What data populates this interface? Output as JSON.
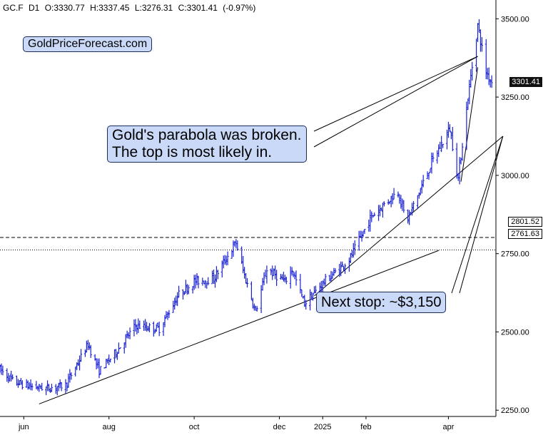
{
  "header": {
    "symbol": "GC.F",
    "timeframe": "D1",
    "open": "O:3330.77",
    "high": "H:3337.45",
    "low": "L:3276.31",
    "close": "C:3301.41",
    "change": "(-0.97%)"
  },
  "annotations": {
    "brand": "GoldPriceForecast.com",
    "note_line1": "Gold's parabola was broken.",
    "note_line2": "The top is most likely in.",
    "next_stop": "Next stop: ~$3,150"
  },
  "price_tags": {
    "last": "3301.41",
    "level_upper": "2801.52",
    "level_lower": "2761.63"
  },
  "colors": {
    "bars": "#1a22d6",
    "callout_fill": "#c9d9f7",
    "callout_border": "#1c2c5a"
  },
  "chart_data": {
    "type": "ohlc",
    "symbol": "GC.F",
    "timeframe": "D1",
    "y_ticks": [
      2250,
      2500,
      2750,
      3000,
      3250,
      3500
    ],
    "y_tick_labels": [
      "2250.00",
      "2500.00",
      "2750.00",
      "3000.00",
      "3250.00",
      "3500.00"
    ],
    "x_tick_labels": [
      "jun",
      "aug",
      "oct",
      "dec",
      "2025",
      "feb",
      "apr"
    ],
    "x_tick_dates": [
      "2024-06-01",
      "2024-08-01",
      "2024-10-01",
      "2024-12-01",
      "2025-01-01",
      "2025-02-01",
      "2025-04-01"
    ],
    "ylim": [
      2230,
      3560
    ],
    "x_range": [
      "2024-05-15",
      "2025-05-05"
    ],
    "last_price": 3301.41,
    "horizontal_levels": [
      2801.52,
      2761.63
    ],
    "price_path": [
      [
        "2024-05-15",
        2380
      ],
      [
        "2024-05-25",
        2340
      ],
      [
        "2024-06-07",
        2325
      ],
      [
        "2024-06-18",
        2320
      ],
      [
        "2024-07-01",
        2330
      ],
      [
        "2024-07-17",
        2460
      ],
      [
        "2024-07-25",
        2375
      ],
      [
        "2024-08-05",
        2430
      ],
      [
        "2024-08-20",
        2520
      ],
      [
        "2024-09-06",
        2510
      ],
      [
        "2024-09-20",
        2620
      ],
      [
        "2024-10-01",
        2660
      ],
      [
        "2024-10-15",
        2670
      ],
      [
        "2024-10-31",
        2785
      ],
      [
        "2024-11-06",
        2680
      ],
      [
        "2024-11-14",
        2565
      ],
      [
        "2024-11-22",
        2700
      ],
      [
        "2024-12-05",
        2660
      ],
      [
        "2024-12-10",
        2700
      ],
      [
        "2024-12-19",
        2590
      ],
      [
        "2025-01-02",
        2660
      ],
      [
        "2025-01-20",
        2730
      ],
      [
        "2025-02-05",
        2870
      ],
      [
        "2025-02-24",
        2950
      ],
      [
        "2025-03-02",
        2850
      ],
      [
        "2025-03-20",
        3040
      ],
      [
        "2025-04-02",
        3150
      ],
      [
        "2025-04-08",
        2990
      ],
      [
        "2025-04-15",
        3250
      ],
      [
        "2025-04-22",
        3480
      ],
      [
        "2025-04-28",
        3330
      ],
      [
        "2025-05-02",
        3300
      ]
    ],
    "trendlines": [
      {
        "from": [
          "2024-06-12",
          2270
        ],
        "to": [
          "2025-03-25",
          2760
        ]
      },
      {
        "from": [
          "2024-12-26",
          2615
        ],
        "to": [
          "2025-05-10",
          3125
        ]
      },
      {
        "from": [
          "2025-04-10",
          2980
        ],
        "to": [
          "2025-04-22",
          3345
        ]
      }
    ]
  }
}
